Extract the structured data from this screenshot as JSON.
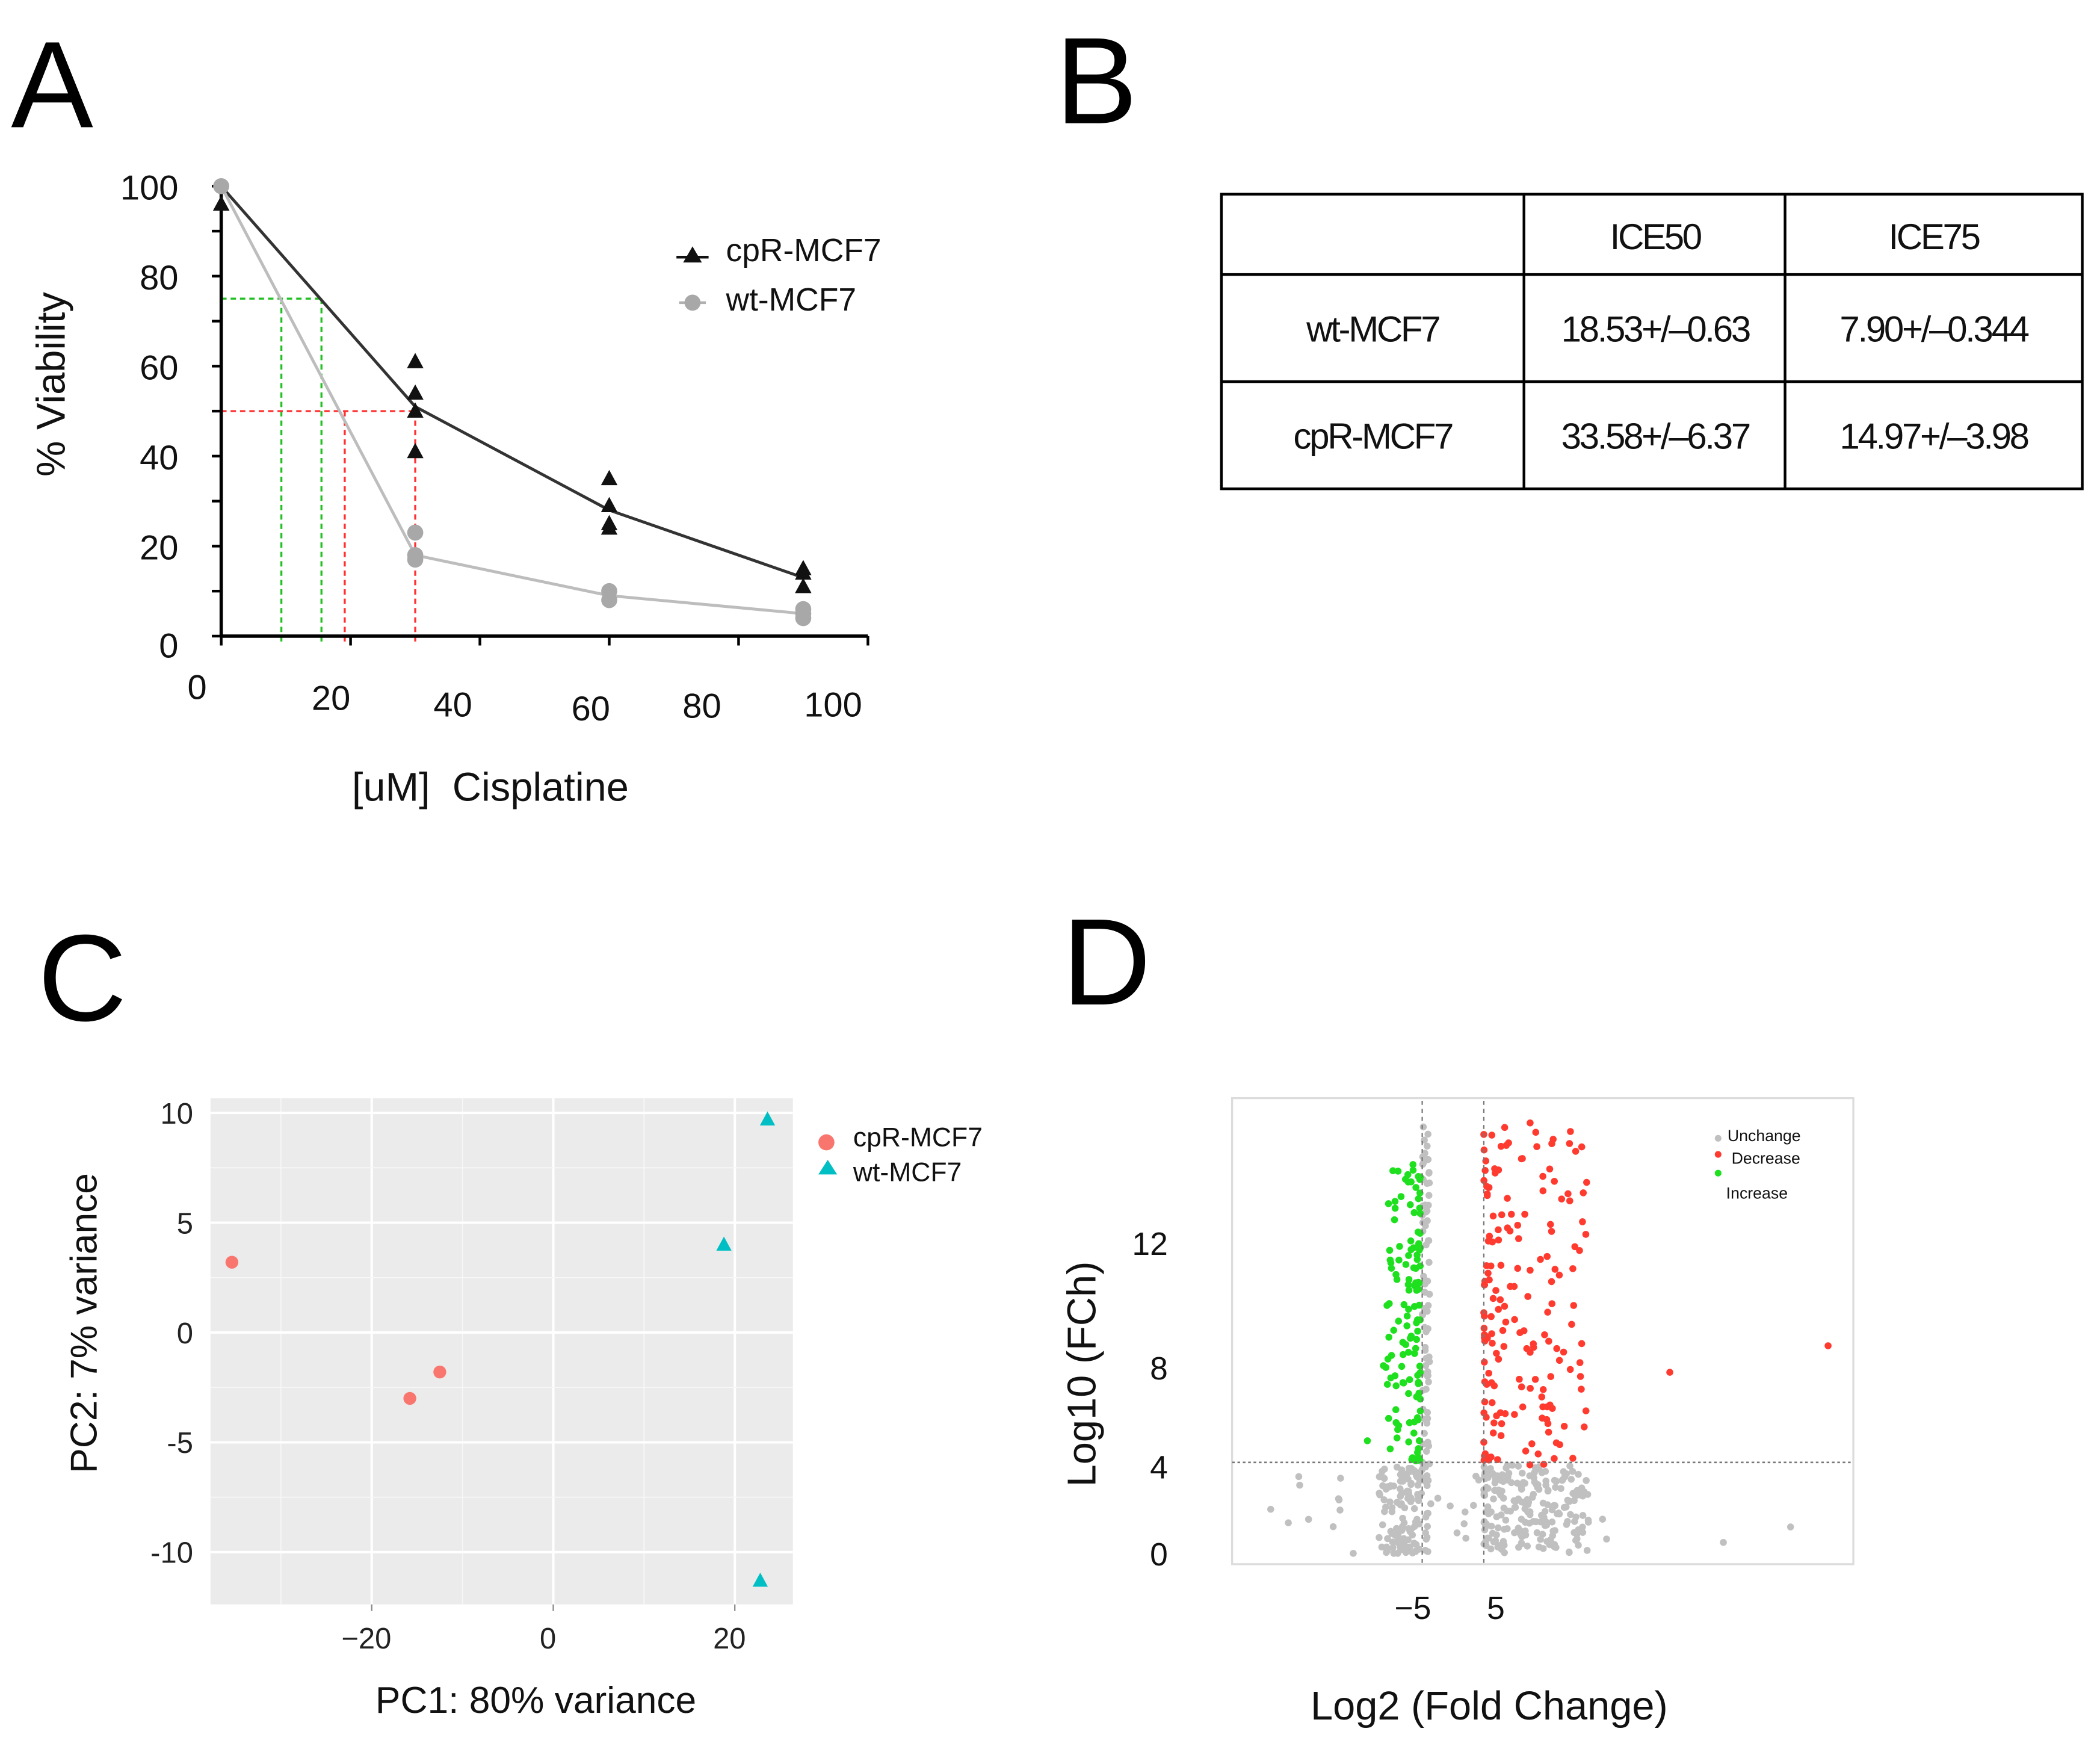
{
  "panels": {
    "a": "A",
    "b": "B",
    "c": "C",
    "d": "D"
  },
  "chart_data": [
    {
      "panel": "A",
      "type": "line",
      "xlabel": "[uM]  Cisplatine",
      "ylabel": "% Viability",
      "xlim": [
        0,
        100
      ],
      "ylim": [
        0,
        100
      ],
      "x_ticks": [
        "0",
        "20",
        "40",
        "60",
        "80",
        "100"
      ],
      "y_ticks": [
        "100",
        "80",
        "60",
        "40",
        "20",
        "0"
      ],
      "legend_position": "top-right",
      "series": [
        {
          "name": "cpR-MCF7",
          "marker": "triangle",
          "color": "#111111",
          "x": [
            0,
            30,
            60,
            90
          ],
          "mean": [
            100,
            51,
            28,
            13
          ],
          "replicates": [
            [
              96
            ],
            [
              61,
              54,
              50,
              41
            ],
            [
              35,
              29,
              25,
              24
            ],
            [
              15,
              14,
              11
            ]
          ]
        },
        {
          "name": "wt-MCF7",
          "marker": "circle",
          "color": "#a8a8a8",
          "x": [
            0,
            30,
            60,
            90
          ],
          "mean": [
            100,
            18,
            9,
            5
          ],
          "replicates": [
            [
              100
            ],
            [
              23,
              18,
              17
            ],
            [
              10,
              8
            ],
            [
              6,
              5,
              4
            ]
          ]
        }
      ],
      "reference_lines": [
        {
          "color": "#22c022",
          "y": 75,
          "x": [
            9.3,
            15.5
          ]
        },
        {
          "color": "#ff3030",
          "y": 50,
          "x": [
            19.1,
            30
          ]
        }
      ]
    },
    {
      "panel": "B",
      "type": "table",
      "columns": [
        "",
        "ICE50",
        "ICE75"
      ],
      "rows": [
        [
          "wt-MCF7",
          "18.53+/–0.63",
          "7.90+/–0.344"
        ],
        [
          "cpR-MCF7",
          "33.58+/–6.37",
          "14.97+/–3.98"
        ]
      ]
    },
    {
      "panel": "C",
      "type": "scatter",
      "xlabel": "PC1: 80% variance",
      "ylabel": "PC2: 7% variance",
      "xlim": [
        -38.2,
        26.7
      ],
      "ylim": [
        -12.4,
        10.7
      ],
      "x_ticks": [
        "−20",
        "0",
        "20"
      ],
      "y_ticks": [
        "10",
        "5",
        "0",
        "-5",
        "-10"
      ],
      "grid": true,
      "legend_position": "right",
      "series": [
        {
          "name": "cpR-MCF7",
          "marker": "circle",
          "color": "#f8766d",
          "points": [
            [
              -35.4,
              3.2
            ],
            [
              -15.8,
              -3.0
            ],
            [
              -12.5,
              -1.8
            ]
          ]
        },
        {
          "name": "wt-MCF7",
          "marker": "triangle",
          "color": "#00bfc4",
          "points": [
            [
              23.6,
              9.7
            ],
            [
              18.8,
              4.0
            ],
            [
              22.8,
              -11.3
            ]
          ]
        }
      ]
    },
    {
      "panel": "D",
      "type": "scatter",
      "xlabel": "Log2 (Fold Change)",
      "ylabel": "Log10 (FCh)",
      "xlim": [
        -35.9,
        65
      ],
      "ylim": [
        -0.5,
        20.6
      ],
      "x_ticks": [
        "−5",
        "5"
      ],
      "y_ticks": [
        "12",
        "8",
        "4",
        "0"
      ],
      "thresholds": {
        "x": [
          -5,
          5
        ],
        "y": 4
      },
      "legend_position": "top-right",
      "legend": [
        {
          "name": "Unchange",
          "color": "#c0c0c0"
        },
        {
          "name": "Decrease",
          "color": "#ff3b30"
        },
        {
          "name": "Increase",
          "color": "#1ee01e"
        }
      ],
      "clusters": [
        {
          "category": "Unchange",
          "count": 130,
          "x_range": [
            -12,
            -4
          ],
          "y_range": [
            0,
            4
          ]
        },
        {
          "category": "Unchange",
          "count": 210,
          "x_range": [
            5,
            22
          ],
          "y_range": [
            0,
            4
          ]
        },
        {
          "category": "Unchange",
          "count": 40,
          "x_range": [
            -27,
            28
          ],
          "y_range": [
            0,
            3.5
          ]
        },
        {
          "category": "Unchange",
          "count": 70,
          "x_range": [
            -5,
            -3.8
          ],
          "y_range": [
            4,
            19.5
          ]
        },
        {
          "category": "Increase",
          "count": 120,
          "x_range": [
            -11,
            -5.3
          ],
          "y_range": [
            4,
            17.5
          ]
        },
        {
          "category": "Decrease",
          "count": 170,
          "x_range": [
            5,
            22
          ],
          "y_range": [
            4,
            19.5
          ]
        }
      ],
      "outliers": [
        {
          "category": "Increase",
          "x": -13.9,
          "y": 5.1
        },
        {
          "category": "Increase",
          "x": -11.3,
          "y": 8.5
        },
        {
          "category": "Increase",
          "x": -9.1,
          "y": 12.4
        },
        {
          "category": "Increase",
          "x": -6.5,
          "y": 17.6
        },
        {
          "category": "Decrease",
          "x": 60.9,
          "y": 9.4
        },
        {
          "category": "Decrease",
          "x": 35.2,
          "y": 8.2
        },
        {
          "category": "Decrease",
          "x": 20.9,
          "y": 18.4
        },
        {
          "category": "Decrease",
          "x": 15.7,
          "y": 17.4
        },
        {
          "category": "Unchange",
          "x": -29.6,
          "y": 2.0
        },
        {
          "category": "Unchange",
          "x": 43.9,
          "y": 0.5
        },
        {
          "category": "Unchange",
          "x": 54.8,
          "y": 1.2
        }
      ]
    }
  ]
}
